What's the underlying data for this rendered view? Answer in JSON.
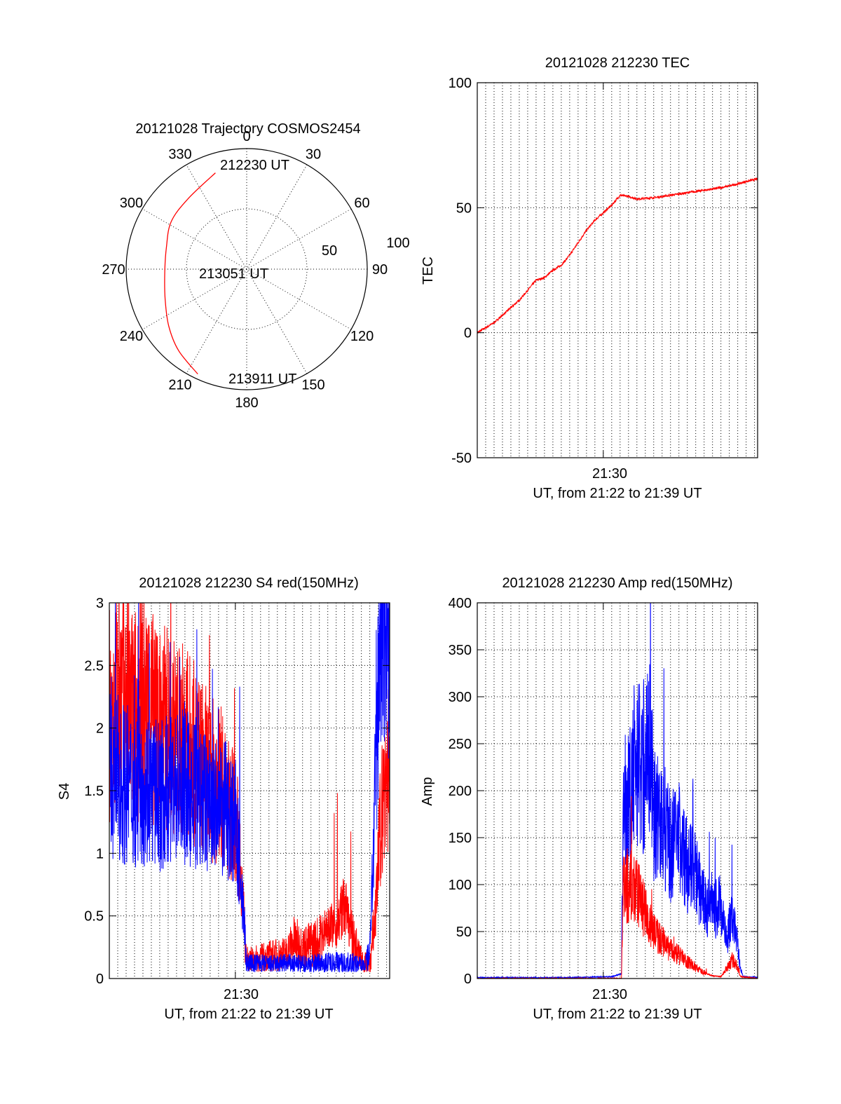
{
  "colors": {
    "red": "#ff0000",
    "blue": "#0000ff",
    "axis": "#000000"
  },
  "chart_data": [
    {
      "type": "polar",
      "title": "20121028 Trajectory COSMOS2454",
      "azimuth_ticks": [
        "0",
        "30",
        "60",
        "90",
        "120",
        "150",
        "180",
        "210",
        "240",
        "270",
        "300",
        "330"
      ],
      "radius_ticks": [
        "50",
        "100"
      ],
      "rlim": [
        0,
        100
      ],
      "track_labels": [
        "212230 UT",
        "213051 UT",
        "213911 UT"
      ],
      "track": {
        "color": "#ff0000",
        "points": [
          {
            "az": 342,
            "zen": 84
          },
          {
            "az": 320,
            "zen": 76
          },
          {
            "az": 302,
            "zen": 74
          },
          {
            "az": 285,
            "zen": 69
          },
          {
            "az": 268,
            "zen": 68
          },
          {
            "az": 250,
            "zen": 72
          },
          {
            "az": 234,
            "zen": 80
          },
          {
            "az": 220,
            "zen": 88
          },
          {
            "az": 205,
            "zen": 96
          }
        ]
      }
    },
    {
      "type": "line",
      "title": "20121028 212230 TEC",
      "ylabel": "TEC",
      "xlabel": "UT, from 21:22 to 21:39 UT",
      "x_tick_label": "21:30",
      "xlim": [
        "21:22:30",
        "21:39:11"
      ],
      "ylim": [
        -50,
        100
      ],
      "yticks": [
        -50,
        0,
        50,
        100
      ],
      "grid": true,
      "series": [
        {
          "color": "#ff0000",
          "points": [
            [
              "21:22:30",
              0
            ],
            [
              "21:23:00",
              2
            ],
            [
              "21:23:30",
              4
            ],
            [
              "21:24:00",
              7
            ],
            [
              "21:24:30",
              10
            ],
            [
              "21:25:00",
              13
            ],
            [
              "21:25:30",
              17
            ],
            [
              "21:26:00",
              21
            ],
            [
              "21:26:30",
              22
            ],
            [
              "21:27:00",
              25
            ],
            [
              "21:27:30",
              27
            ],
            [
              "21:28:00",
              31
            ],
            [
              "21:28:30",
              36
            ],
            [
              "21:29:00",
              41
            ],
            [
              "21:29:30",
              45
            ],
            [
              "21:30:00",
              48
            ],
            [
              "21:30:30",
              51
            ],
            [
              "21:31:00",
              55
            ],
            [
              "21:31:30",
              54.5
            ],
            [
              "21:32:00",
              53.5
            ],
            [
              "21:33:00",
              54
            ],
            [
              "21:34:00",
              55
            ],
            [
              "21:35:00",
              56
            ],
            [
              "21:36:00",
              57
            ],
            [
              "21:37:00",
              58
            ],
            [
              "21:38:00",
              59.5
            ],
            [
              "21:38:30",
              60.5
            ],
            [
              "21:39:11",
              61.5
            ]
          ]
        }
      ]
    },
    {
      "type": "line",
      "title": "20121028 212230 S4 red(150MHz)",
      "ylabel": "S4",
      "xlabel": "UT, from 21:22 to 21:39 UT",
      "x_tick_label": "21:30",
      "xlim": [
        "21:22:30",
        "21:39:11"
      ],
      "ylim": [
        0,
        3
      ],
      "yticks": [
        0,
        0.5,
        1,
        1.5,
        2,
        2.5,
        3
      ],
      "grid": true,
      "series": [
        {
          "color": "#ff0000",
          "points": [
            [
              "21:22:30",
              2.1
            ],
            [
              "21:23:00",
              2.2
            ],
            [
              "21:23:30",
              2.2
            ],
            [
              "21:24:00",
              2.1
            ],
            [
              "21:24:30",
              2.2
            ],
            [
              "21:25:00",
              2.1
            ],
            [
              "21:25:30",
              2.0
            ],
            [
              "21:26:00",
              2.0
            ],
            [
              "21:26:30",
              1.9
            ],
            [
              "21:27:00",
              1.9
            ],
            [
              "21:27:30",
              1.8
            ],
            [
              "21:28:00",
              1.7
            ],
            [
              "21:28:30",
              1.6
            ],
            [
              "21:29:00",
              1.55
            ],
            [
              "21:29:30",
              1.4
            ],
            [
              "21:30:00",
              1.3
            ],
            [
              "21:30:20",
              0.9
            ],
            [
              "21:30:40",
              0.15
            ],
            [
              "21:31:00",
              0.15
            ],
            [
              "21:32:00",
              0.18
            ],
            [
              "21:33:00",
              0.2
            ],
            [
              "21:33:30",
              0.3
            ],
            [
              "21:34:00",
              0.25
            ],
            [
              "21:35:00",
              0.3
            ],
            [
              "21:35:30",
              0.45
            ],
            [
              "21:36:00",
              0.4
            ],
            [
              "21:36:30",
              0.6
            ],
            [
              "21:37:00",
              0.3
            ],
            [
              "21:37:30",
              0.15
            ],
            [
              "21:38:00",
              0.1
            ],
            [
              "21:38:20",
              0.5
            ],
            [
              "21:38:40",
              1.3
            ],
            [
              "21:39:11",
              1.8
            ]
          ]
        },
        {
          "color": "#0000ff",
          "points": [
            [
              "21:22:30",
              1.6
            ],
            [
              "21:23:00",
              1.6
            ],
            [
              "21:23:30",
              1.55
            ],
            [
              "21:24:00",
              1.5
            ],
            [
              "21:24:30",
              1.55
            ],
            [
              "21:25:00",
              1.5
            ],
            [
              "21:25:30",
              1.45
            ],
            [
              "21:26:00",
              1.5
            ],
            [
              "21:26:30",
              1.55
            ],
            [
              "21:27:00",
              1.5
            ],
            [
              "21:27:30",
              1.45
            ],
            [
              "21:28:00",
              1.4
            ],
            [
              "21:28:30",
              1.4
            ],
            [
              "21:29:00",
              1.3
            ],
            [
              "21:29:30",
              1.35
            ],
            [
              "21:30:00",
              1.25
            ],
            [
              "21:30:20",
              0.8
            ],
            [
              "21:30:40",
              0.12
            ],
            [
              "21:31:00",
              0.12
            ],
            [
              "21:32:00",
              0.11
            ],
            [
              "21:33:00",
              0.12
            ],
            [
              "21:34:00",
              0.11
            ],
            [
              "21:35:00",
              0.12
            ],
            [
              "21:36:00",
              0.13
            ],
            [
              "21:37:00",
              0.12
            ],
            [
              "21:37:40",
              0.1
            ],
            [
              "21:38:00",
              0.2
            ],
            [
              "21:38:20",
              1.5
            ],
            [
              "21:38:40",
              3.0
            ],
            [
              "21:39:11",
              3.0
            ]
          ]
        }
      ]
    },
    {
      "type": "line",
      "title": "20121028 212230 Amp red(150MHz)",
      "ylabel": "Amp",
      "xlabel": "UT, from 21:22 to 21:39 UT",
      "x_tick_label": "21:30",
      "xlim": [
        "21:22:30",
        "21:39:11"
      ],
      "ylim": [
        0,
        400
      ],
      "yticks": [
        0,
        50,
        100,
        150,
        200,
        250,
        300,
        350,
        400
      ],
      "grid": true,
      "series": [
        {
          "color": "#0000ff",
          "points": [
            [
              "21:22:30",
              1
            ],
            [
              "21:25:00",
              1
            ],
            [
              "21:28:00",
              1
            ],
            [
              "21:30:30",
              2
            ],
            [
              "21:31:05",
              5
            ],
            [
              "21:31:10",
              180
            ],
            [
              "21:31:40",
              190
            ],
            [
              "21:32:00",
              250
            ],
            [
              "21:32:15",
              210
            ],
            [
              "21:32:45",
              260
            ],
            [
              "21:33:00",
              180
            ],
            [
              "21:33:30",
              170
            ],
            [
              "21:34:00",
              140
            ],
            [
              "21:34:30",
              150
            ],
            [
              "21:35:00",
              120
            ],
            [
              "21:35:30",
              110
            ],
            [
              "21:36:00",
              80
            ],
            [
              "21:36:30",
              70
            ],
            [
              "21:37:00",
              80
            ],
            [
              "21:37:20",
              40
            ],
            [
              "21:37:40",
              70
            ],
            [
              "21:38:00",
              40
            ],
            [
              "21:38:10",
              10
            ],
            [
              "21:38:20",
              2
            ],
            [
              "21:39:11",
              1
            ]
          ]
        },
        {
          "color": "#ff0000",
          "points": [
            [
              "21:22:30",
              0
            ],
            [
              "21:31:05",
              0
            ],
            [
              "21:31:10",
              90
            ],
            [
              "21:31:30",
              100
            ],
            [
              "21:32:00",
              90
            ],
            [
              "21:32:20",
              80
            ],
            [
              "21:32:40",
              60
            ],
            [
              "21:33:00",
              50
            ],
            [
              "21:33:30",
              40
            ],
            [
              "21:34:00",
              30
            ],
            [
              "21:34:30",
              25
            ],
            [
              "21:35:00",
              18
            ],
            [
              "21:35:30",
              12
            ],
            [
              "21:36:00",
              6
            ],
            [
              "21:36:30",
              3
            ],
            [
              "21:37:00",
              2
            ],
            [
              "21:37:20",
              10
            ],
            [
              "21:37:40",
              20
            ],
            [
              "21:38:00",
              12
            ],
            [
              "21:38:10",
              2
            ],
            [
              "21:39:11",
              0
            ]
          ]
        }
      ]
    }
  ]
}
